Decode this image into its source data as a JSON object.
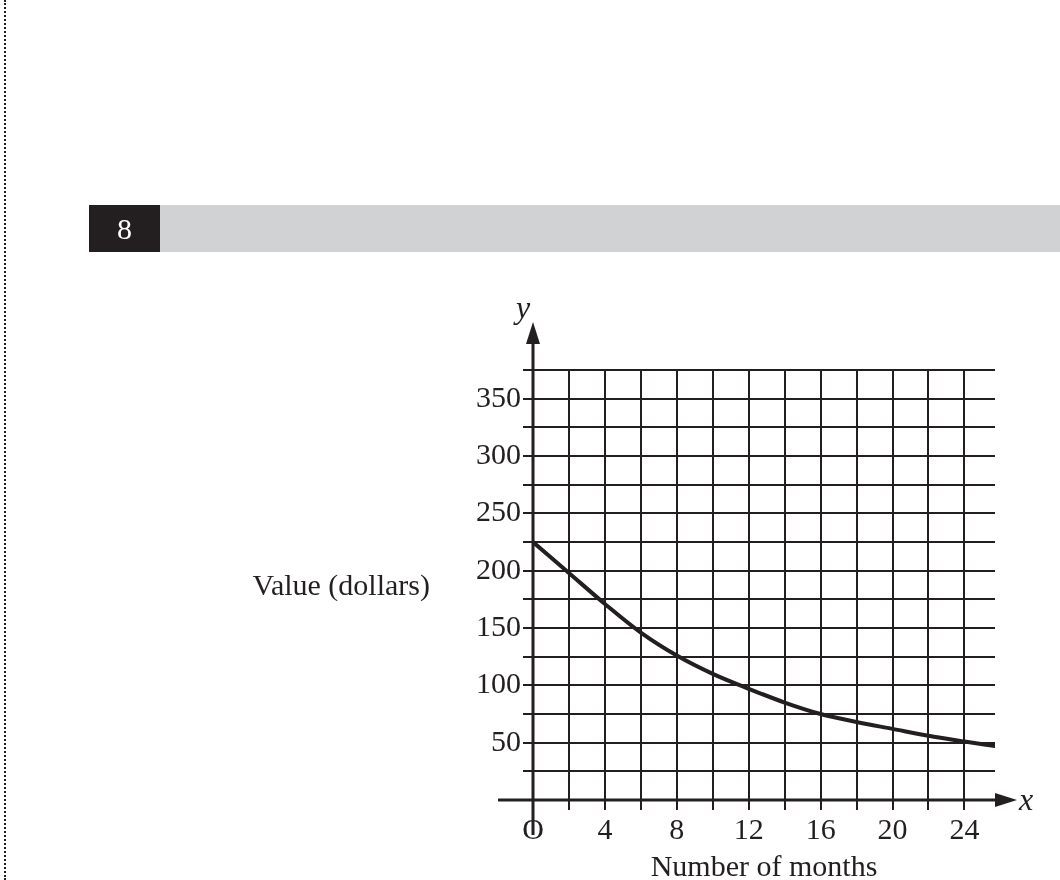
{
  "chart_data": {
    "type": "line",
    "xlabel": "Number of months",
    "ylabel": "Value (dollars)",
    "annotations": [
      "8",
      "y",
      "x"
    ],
    "x": [
      0,
      2,
      4,
      6,
      8,
      10,
      12,
      14,
      16,
      18,
      20,
      22,
      24,
      25.7
    ],
    "series": [
      {
        "color": "#231f20",
        "values": [
          225,
          198,
          171,
          146,
          126,
          110,
          97,
          85,
          75,
          68,
          62,
          56,
          51,
          47
        ]
      }
    ],
    "xlim": [
      0,
      25.7
    ],
    "ylim": [
      0,
      375
    ],
    "xticks": [
      {
        "value": 0,
        "label": "O"
      },
      {
        "value": 2,
        "label": null
      },
      4,
      {
        "value": 6,
        "label": null
      },
      8,
      {
        "value": 10,
        "label": null
      },
      12,
      {
        "value": 14,
        "label": null
      },
      16,
      {
        "value": 18,
        "label": null
      },
      20,
      {
        "value": 22,
        "label": null
      },
      24
    ],
    "yticks": [
      {
        "value": 0,
        "label": null
      },
      {
        "value": 25,
        "label": null
      },
      50,
      {
        "value": 75,
        "label": null
      },
      100,
      {
        "value": 125,
        "label": null
      },
      150,
      {
        "value": 175,
        "label": null
      },
      200,
      {
        "value": 225,
        "label": null
      },
      250,
      {
        "value": 275,
        "label": null
      },
      300,
      {
        "value": 325,
        "label": null
      },
      350,
      {
        "value": 375,
        "label": null
      }
    ],
    "grid": true,
    "legend": false,
    "marker": "none",
    "line_style": "solid"
  }
}
